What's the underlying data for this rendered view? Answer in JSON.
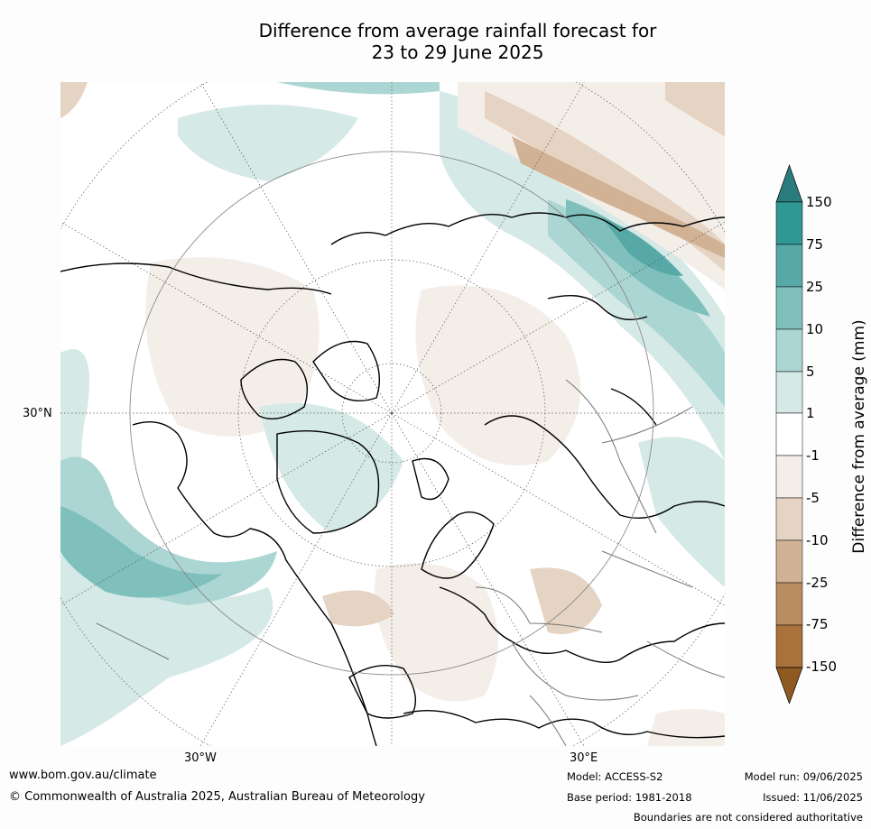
{
  "title_line1": "Difference from average rainfall forecast for",
  "title_line2": "23 to 29 June 2025",
  "axis_labels": {
    "lat_30n": "30°N",
    "lon_30w": "30°W",
    "lon_30e": "30°E"
  },
  "colorbar": {
    "label": "Difference from average (mm)",
    "ticks": [
      "150",
      "75",
      "25",
      "10",
      "5",
      "1",
      "-1",
      "-5",
      "-10",
      "-25",
      "-75",
      "-150"
    ],
    "colors": {
      "over": "#2a7d7c",
      "c75_150": "#2f9895",
      "c25_75": "#56a9a7",
      "c10_25": "#7fbfbc",
      "c5_10": "#acd6d3",
      "c1_5": "#d5e9e7",
      "c_neutral": "#ffffff",
      "cm1_m5": "#f4eee9",
      "cm5_m10": "#e5d4c3",
      "cm10_m25": "#d1b295",
      "cm25_m75": "#bb8c60",
      "cm75_m150": "#a9713b",
      "under": "#8f5a22"
    }
  },
  "footer": {
    "website": "www.bom.gov.au/climate",
    "copyright": "© Commonwealth of Australia 2025, Australian Bureau of Meteorology",
    "model": "Model: ACCESS-S2",
    "base_period": "Base period: 1981-2018",
    "model_run": "Model run: 09/06/2025",
    "issued": "Issued: 11/06/2025",
    "disclaimer": "Boundaries are not considered authoritative"
  }
}
